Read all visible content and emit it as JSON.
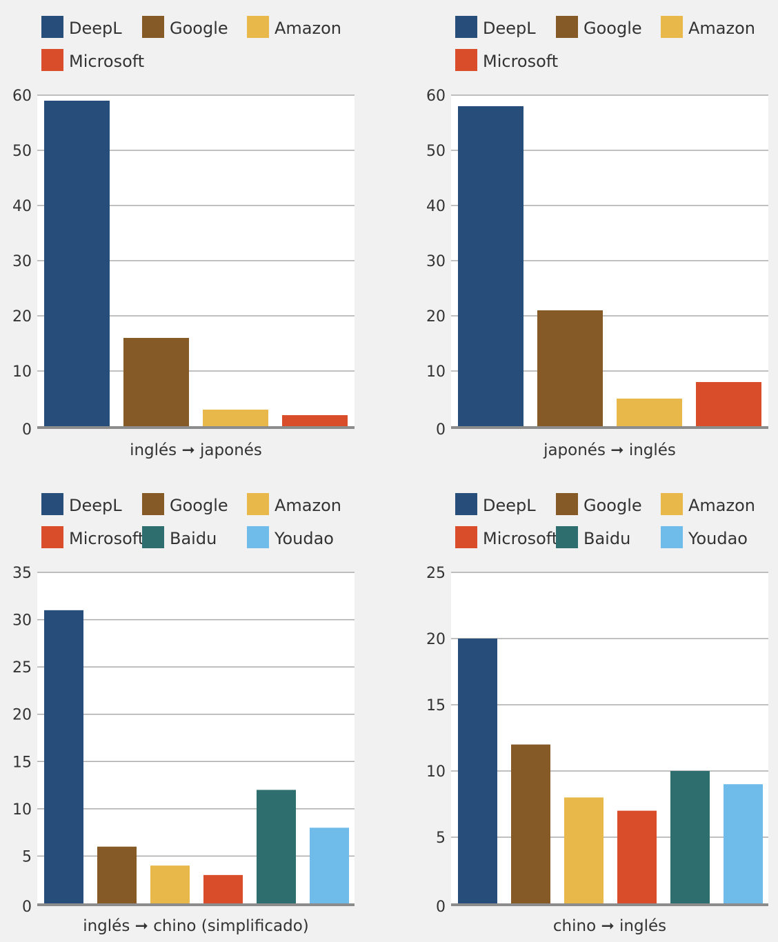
{
  "colors": {
    "DeepL": "#274e7a",
    "Google": "#855a26",
    "Amazon": "#e8b84a",
    "Microsoft": "#d94d2b",
    "Baidu": "#2e6e6e",
    "Youdao": "#6fbbea",
    "background": "#f1f1f1",
    "plot_background": "#ffffff",
    "gridline": "#aaaaaa",
    "baseline": "#8c8c8c"
  },
  "chart_data": [
    {
      "type": "bar",
      "xlabel": "inglés ➞ japonés",
      "legend": [
        "DeepL",
        "Google",
        "Amazon",
        "Microsoft"
      ],
      "categories": [
        "DeepL",
        "Google",
        "Amazon",
        "Microsoft"
      ],
      "values": [
        59,
        16,
        3,
        2
      ],
      "ylim": [
        0,
        60
      ],
      "yticks": [
        0,
        10,
        20,
        30,
        40,
        50,
        60
      ],
      "grid": true,
      "legend_position": "top-left"
    },
    {
      "type": "bar",
      "xlabel": "japonés ➞ inglés",
      "legend": [
        "DeepL",
        "Google",
        "Amazon",
        "Microsoft"
      ],
      "categories": [
        "DeepL",
        "Google",
        "Amazon",
        "Microsoft"
      ],
      "values": [
        58,
        21,
        5,
        8
      ],
      "ylim": [
        0,
        60
      ],
      "yticks": [
        0,
        10,
        20,
        30,
        40,
        50,
        60
      ],
      "grid": true,
      "legend_position": "top-left"
    },
    {
      "type": "bar",
      "xlabel": "inglés ➞ chino (simplificado)",
      "legend": [
        "DeepL",
        "Google",
        "Amazon",
        "Microsoft",
        "Baidu",
        "Youdao"
      ],
      "categories": [
        "DeepL",
        "Google",
        "Amazon",
        "Microsoft",
        "Baidu",
        "Youdao"
      ],
      "values": [
        31,
        6,
        4,
        3,
        12,
        8
      ],
      "ylim": [
        0,
        35
      ],
      "yticks": [
        0,
        5,
        10,
        15,
        20,
        25,
        30,
        35
      ],
      "grid": true,
      "legend_position": "top-left"
    },
    {
      "type": "bar",
      "xlabel": "chino ➞ inglés",
      "legend": [
        "DeepL",
        "Google",
        "Amazon",
        "Microsoft",
        "Baidu",
        "Youdao"
      ],
      "categories": [
        "DeepL",
        "Google",
        "Amazon",
        "Microsoft",
        "Baidu",
        "Youdao"
      ],
      "values": [
        20,
        12,
        8,
        7,
        10,
        9
      ],
      "ylim": [
        0,
        25
      ],
      "yticks": [
        0,
        5,
        10,
        15,
        20,
        25
      ],
      "grid": true,
      "legend_position": "top-left"
    }
  ]
}
